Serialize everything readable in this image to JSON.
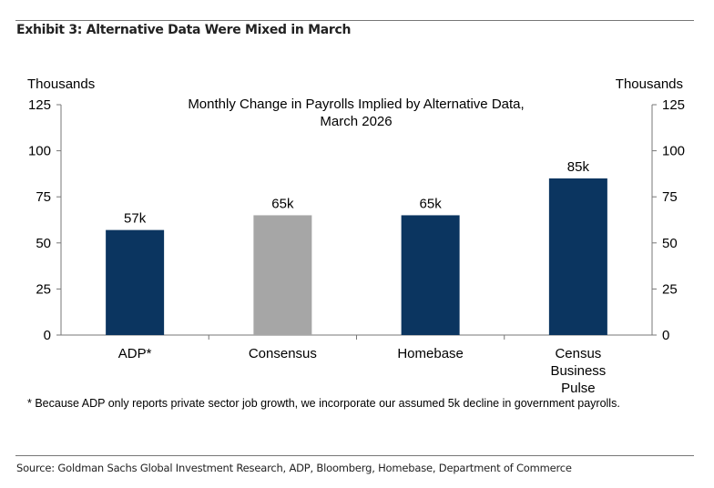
{
  "exhibit_title": "Exhibit 3: Alternative Data Were Mixed in March",
  "footnote": "* Because ADP only reports private sector job growth, we incorporate our assumed 5k decline in government payrolls.",
  "source": "Source: Goldman Sachs Global Investment Research, ADP, Bloomberg, Homebase, Department of Commerce",
  "chart_data": {
    "type": "bar",
    "title_lines": [
      "Monthly Change in Payrolls Implied by Alternative Data,",
      "March 2026"
    ],
    "ylabel_left": "Thousands",
    "ylabel_right": "Thousands",
    "ylim": [
      0,
      125
    ],
    "yticks": [
      0,
      25,
      50,
      75,
      100,
      125
    ],
    "categories": [
      [
        "ADP*"
      ],
      [
        "Consensus"
      ],
      [
        "Homebase"
      ],
      [
        "Census",
        "Business",
        "Pulse"
      ]
    ],
    "values": [
      57,
      65,
      65,
      85
    ],
    "data_labels": [
      "57k",
      "65k",
      "65k",
      "85k"
    ],
    "colors": [
      "#0b3560",
      "#a6a6a6",
      "#0b3560",
      "#0b3560"
    ],
    "grid": false
  }
}
